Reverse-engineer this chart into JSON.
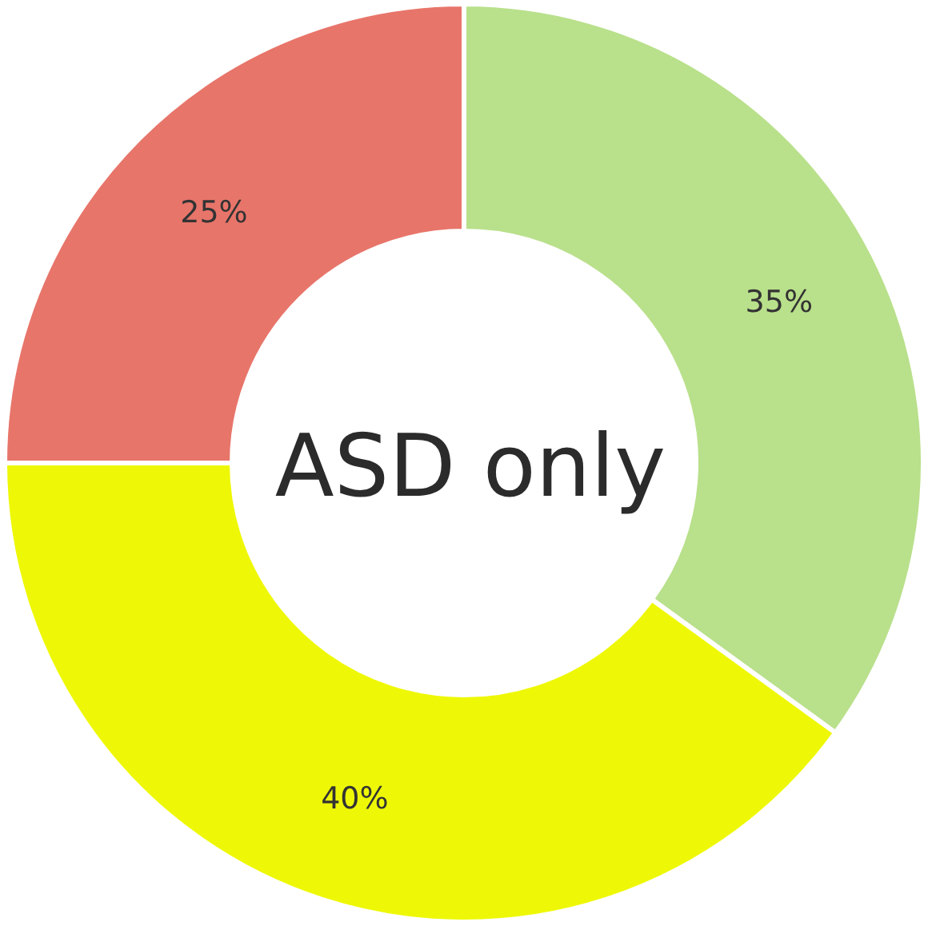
{
  "chart_data": {
    "type": "donut",
    "title": "ASD only",
    "categories": [
      null,
      null,
      null
    ],
    "values": [
      35,
      40,
      25
    ],
    "colors": [
      "#b9e08b",
      "#eef806",
      "#e8756a"
    ],
    "value_labels": [
      "35%",
      "40%",
      "25%"
    ]
  }
}
